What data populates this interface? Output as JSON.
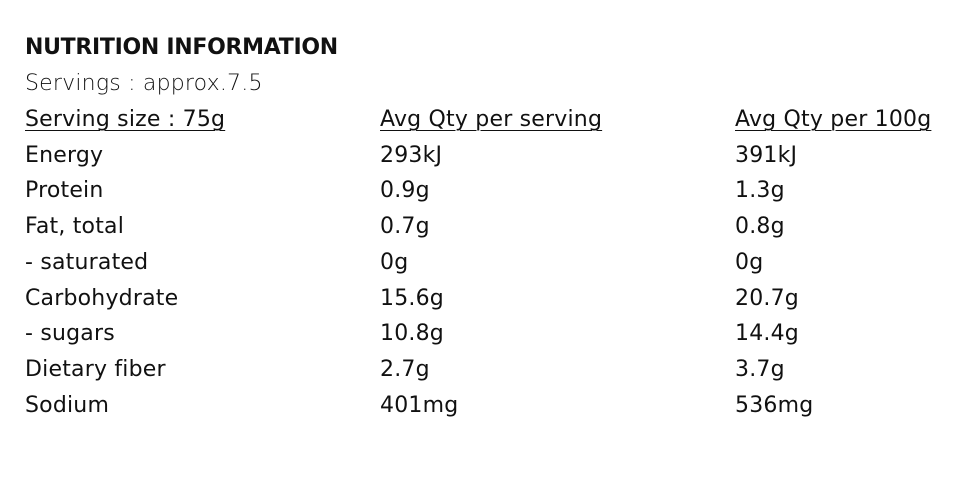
{
  "header": {
    "title": "NUTRITION INFORMATION",
    "servings": "Servings : approx.7.5"
  },
  "table": {
    "columns": [
      "Serving size : 75g",
      "Avg Qty per serving",
      "Avg Qty per 100g"
    ],
    "rows": [
      [
        "Energy",
        "293kJ",
        "391kJ"
      ],
      [
        "Protein",
        "0.9g",
        "1.3g"
      ],
      [
        "Fat, total",
        "0.7g",
        "0.8g"
      ],
      [
        "- saturated",
        "0g",
        "0g"
      ],
      [
        "Carbohydrate",
        "15.6g",
        "20.7g"
      ],
      [
        "- sugars",
        "10.8g",
        "14.4g"
      ],
      [
        "Dietary fiber",
        "2.7g",
        "3.7g"
      ],
      [
        "Sodium",
        "401mg",
        "536mg"
      ]
    ]
  }
}
